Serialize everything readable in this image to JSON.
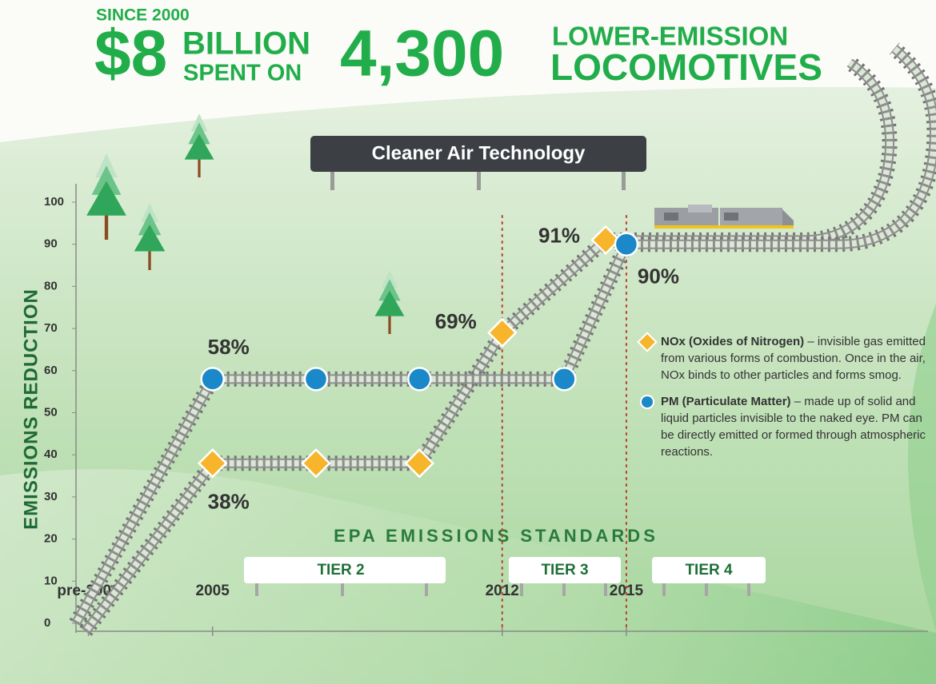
{
  "header": {
    "since": "SINCE 2000",
    "amount": "$8",
    "amount_unit": "BILLION",
    "amount_verb": "SPENT ON",
    "count": "4,300",
    "count_line1": "LOWER-EMISSION",
    "count_line2": "LOCOMOTIVES"
  },
  "chart_data": {
    "type": "line",
    "title": "Cleaner Air Technology",
    "y_label": "EMISSIONS REDUCTION",
    "xlim": [
      2001.7,
      2022
    ],
    "xticks": [
      {
        "value": 2002,
        "label": "pre-2000"
      },
      2005,
      2012,
      2015
    ],
    "ylim": [
      0,
      100
    ],
    "yticks": [
      0,
      10,
      20,
      30,
      40,
      50,
      60,
      70,
      80,
      90,
      100
    ],
    "reference_lines": [
      2012,
      2015
    ],
    "series": [
      {
        "name": "NOx (Oxides of Nitrogen)",
        "color": "#f7b52c",
        "marker": "diamond",
        "x": [
          2005,
          2007.5,
          2010,
          2012,
          2014.5
        ],
        "values": [
          38,
          38,
          38,
          69,
          91
        ],
        "value_labels": [
          "38%",
          null,
          null,
          "69%",
          "91%"
        ],
        "description": "– invisible gas emitted from various forms of combustion. Once in the air, NOx binds to other particles and forms smog."
      },
      {
        "name": "PM (Particulate Matter)",
        "color": "#1a88c9",
        "marker": "circle",
        "x": [
          2005,
          2007.5,
          2010,
          2013.5,
          2015
        ],
        "values": [
          58,
          58,
          58,
          58,
          90
        ],
        "value_labels": [
          "58%",
          null,
          null,
          null,
          "90%"
        ],
        "description": "– made up of solid and liquid particles invisible to the naked eye. PM can be directly emitted or formed through atmospheric reactions."
      }
    ],
    "standards": {
      "title": "EPA EMISSIONS STANDARDS",
      "tiers": [
        "TIER 2",
        "TIER 3",
        "TIER 4"
      ]
    }
  }
}
